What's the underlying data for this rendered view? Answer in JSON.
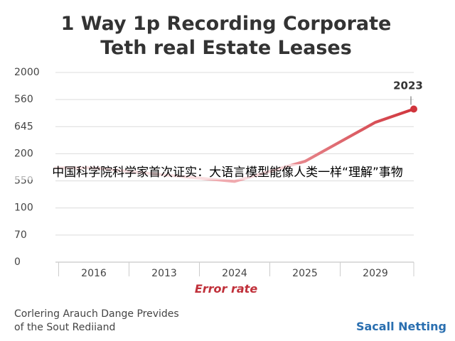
{
  "chart_data": {
    "type": "line",
    "title_lines": [
      "1 Way 1p Recording Corporate",
      "Teth real Estate Leases"
    ],
    "x_label": "Error rate",
    "categories": [
      "2016",
      "2013",
      "2024",
      "2025",
      "2029"
    ],
    "series": [
      {
        "color": "#d0343c",
        "values": [
          3.48,
          3.22,
          2.98,
          3.72,
          5.16
        ]
      }
    ],
    "end_point": {
      "label": "2023",
      "value": 5.65
    },
    "ylim": [
      0,
      7
    ],
    "yticks": [
      {
        "value": 0,
        "label": "0"
      },
      {
        "value": 1,
        "label": "70"
      },
      {
        "value": 2,
        "label": "100"
      },
      {
        "value": 3,
        "label": "550"
      },
      {
        "value": 4,
        "label": "200"
      },
      {
        "value": 5,
        "label": "645"
      },
      {
        "value": 6,
        "label": "560"
      },
      {
        "value": 7,
        "label": "2000"
      }
    ],
    "grid": true,
    "footer_lines": [
      "Corlering Arauch Dange Prevides",
      "of the Sout Rediiand"
    ],
    "brand": "Sacall Netting",
    "overlay_text": "中国科学院科学家首次证实：大语言模型能像人类一样“理解”事物"
  }
}
